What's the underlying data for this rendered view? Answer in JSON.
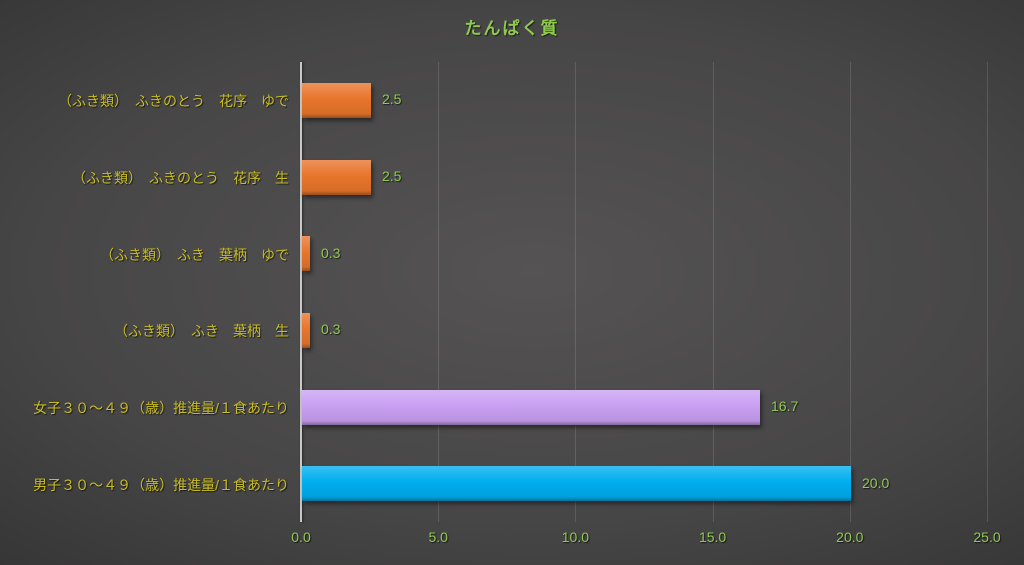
{
  "title": "たんぱく質",
  "colors": {
    "title_text": "#8fc94f",
    "value_text": "#8fc94f",
    "category_text": "#c9bd22",
    "axis_line": "#c8c8c8",
    "gridline_white_alpha": 0.13,
    "background_center": "#555353",
    "background_edge": "#232222",
    "orange_bar": "#e8752b",
    "purple_bar": "#c9a0f2",
    "blue_bar": "#00aeef"
  },
  "chart_data": {
    "type": "bar",
    "orientation": "horizontal",
    "title": "たんぱく質",
    "xlabel": "",
    "ylabel": "",
    "xlim": [
      0,
      25
    ],
    "grid": true,
    "legend": false,
    "categories": [
      "（ふき類）　ふきのとう　花序　ゆで",
      "（ふき類）　ふきのとう　花序　生",
      "（ふき類）　ふき　葉柄　ゆで",
      "（ふき類）　ふき　葉柄　生",
      "女子３０～４９（歳）推進量/１食あたり",
      "男子３０～４９（歳）推進量/１食あたり"
    ],
    "values": [
      2.5,
      2.5,
      0.3,
      0.3,
      16.7,
      20.0
    ],
    "value_labels": [
      "2.5",
      "2.5",
      "0.3",
      "0.3",
      "16.7",
      "20.0"
    ],
    "bar_colors": [
      "#e8752b",
      "#e8752b",
      "#e8752b",
      "#e8752b",
      "#c9a0f2",
      "#00aeef"
    ],
    "x_ticks": [
      0,
      5,
      10,
      15,
      20,
      25
    ],
    "x_tick_labels": [
      "0.0",
      "5.0",
      "10.0",
      "15.0",
      "20.0",
      "25.0"
    ]
  }
}
